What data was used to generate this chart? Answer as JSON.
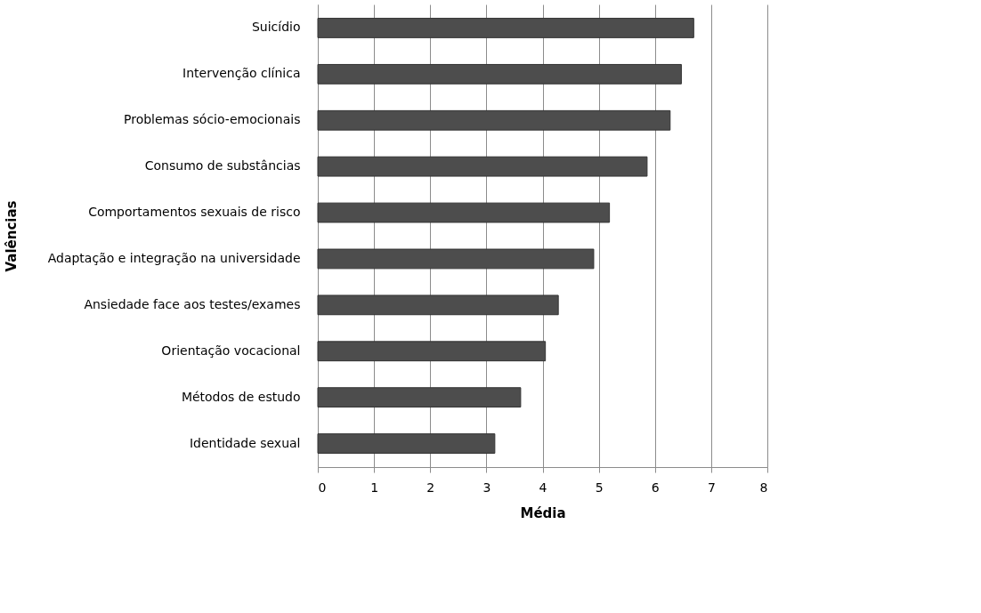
{
  "chart_data": {
    "type": "bar",
    "orientation": "horizontal",
    "xlabel": "Média",
    "ylabel": "Valências",
    "categories": [
      "Suicídio",
      "Intervenção clínica",
      "Problemas sócio-emocionais",
      "Consumo de substâncias",
      "Comportamentos sexuais de risco",
      "Adaptação e integração na universidade",
      "Ansiedade face aos testes/exames",
      "Orientação vocacional",
      "Métodos de estudo",
      "Identidade sexual"
    ],
    "values": [
      6.69,
      6.47,
      6.27,
      5.86,
      5.19,
      4.91,
      4.28,
      4.05,
      3.61,
      3.15
    ],
    "color": "#4d4d4d",
    "xlim": [
      0,
      8
    ],
    "xticks": [
      0,
      1,
      2,
      3,
      4,
      5,
      6,
      7,
      8
    ],
    "grid": "x"
  }
}
